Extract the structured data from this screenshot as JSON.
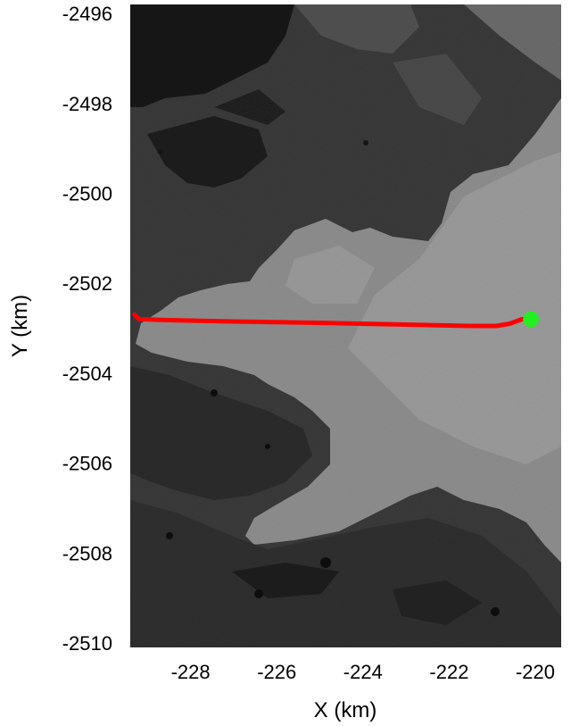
{
  "chart_data": {
    "type": "line",
    "title": "",
    "xlabel": "X (km)",
    "ylabel": "Y (km)",
    "xlim": [
      -229.4,
      -219.4
    ],
    "ylim": [
      -2510.1,
      -2495.8
    ],
    "xticks": [
      -228,
      -226,
      -224,
      -222,
      -220
    ],
    "yticks": [
      -2496,
      -2498,
      -2500,
      -2502,
      -2504,
      -2506,
      -2508,
      -2510
    ],
    "xtick_labels": [
      "-228",
      "-226",
      "-224",
      "-222",
      "-220"
    ],
    "ytick_labels": [
      "-2496",
      "-2498",
      "-2500",
      "-2502",
      "-2504",
      "-2506",
      "-2508",
      "-2510"
    ],
    "grid": false,
    "background": "grayscale satellite image of glacier terrain",
    "series": [
      {
        "color": "#ff0000",
        "x": [
          -229.3,
          -229.2,
          -228.5,
          -227,
          -225,
          -223,
          -221.5,
          -220.9,
          -220.6,
          -220.3,
          -220.1
        ],
        "y": [
          -2502.7,
          -2502.8,
          -2502.82,
          -2502.85,
          -2502.88,
          -2502.92,
          -2502.95,
          -2502.95,
          -2502.9,
          -2502.8,
          -2502.8
        ]
      }
    ],
    "markers": [
      {
        "color": "#22ee22",
        "x": -220.1,
        "y": -2502.8
      }
    ]
  }
}
